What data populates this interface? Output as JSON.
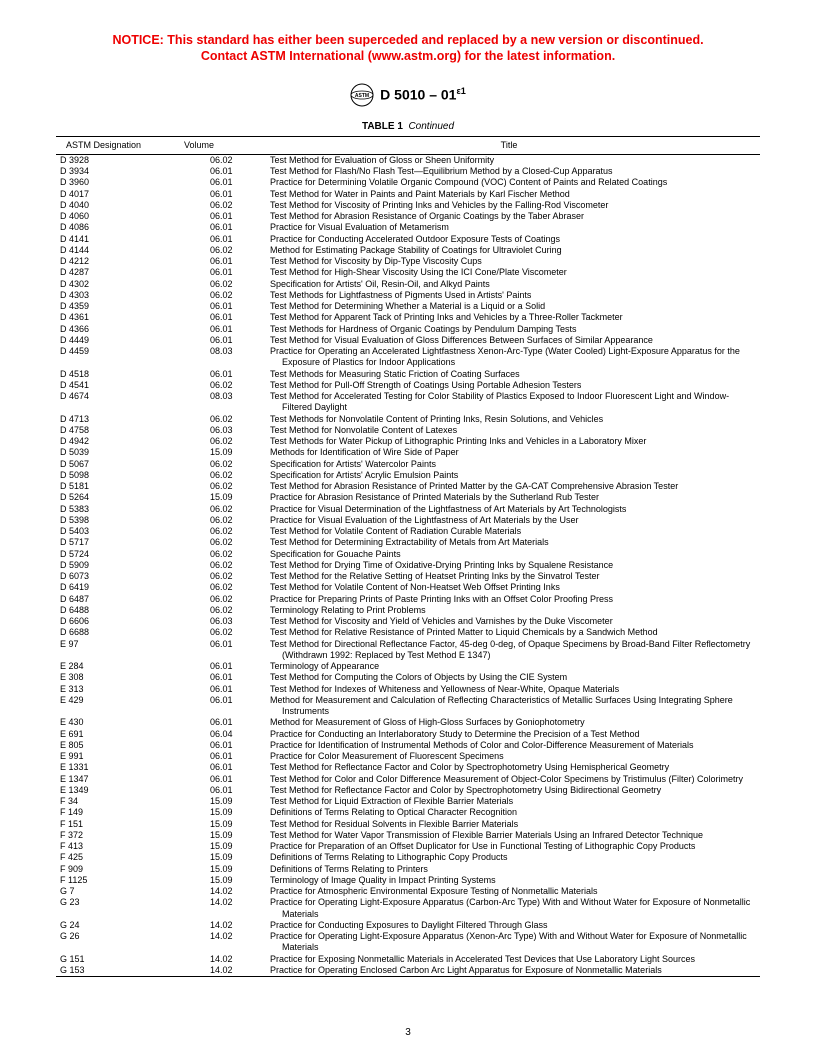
{
  "notice_line1": "NOTICE: This standard has either been superceded and replaced by a new version or discontinued.",
  "notice_line2": "Contact ASTM International (www.astm.org) for the latest information.",
  "doc_id_html": "D 5010 – 01<sup>ε1</sup>",
  "table_caption_bold": "TABLE 1",
  "table_caption_italic": "Continued",
  "headers": {
    "designation": "ASTM Designation",
    "volume": "Volume",
    "title": "Title"
  },
  "page_number": "3",
  "rows": [
    {
      "d": "D 3928",
      "v": "06.02",
      "t": "Test Method for Evaluation of Gloss or Sheen Uniformity"
    },
    {
      "d": "D 3934",
      "v": "06.01",
      "t": "Test Method for Flash/No Flash Test—Equilibrium Method by a Closed-Cup Apparatus"
    },
    {
      "d": "D 3960",
      "v": "06.01",
      "t": "Practice for Determining Volatile Organic Compound (VOC) Content of Paints and Related Coatings"
    },
    {
      "d": "D 4017",
      "v": "06.01",
      "t": "Test Method for Water in Paints and Paint Materials by Karl Fischer Method"
    },
    {
      "d": "D 4040",
      "v": "06.02",
      "t": "Test Method for Viscosity of Printing Inks and Vehicles by the Falling-Rod Viscometer"
    },
    {
      "d": "D 4060",
      "v": "06.01",
      "t": "Test Method for Abrasion Resistance of Organic Coatings by the Taber Abraser"
    },
    {
      "d": "D 4086",
      "v": "06.01",
      "t": "Practice for Visual Evaluation of Metamerism"
    },
    {
      "d": "D 4141",
      "v": "06.01",
      "t": "Practice for Conducting Accelerated Outdoor Exposure Tests of Coatings"
    },
    {
      "d": "D 4144",
      "v": "06.02",
      "t": "Method for Estimating Package Stability of Coatings for Ultraviolet Curing"
    },
    {
      "d": "D 4212",
      "v": "06.01",
      "t": "Test Method for Viscosity by Dip-Type Viscosity Cups"
    },
    {
      "d": "D 4287",
      "v": "06.01",
      "t": "Test Method for High-Shear Viscosity Using the ICI Cone/Plate Viscometer"
    },
    {
      "d": "D 4302",
      "v": "06.02",
      "t": "Specification for Artists' Oil, Resin-Oil, and Alkyd Paints"
    },
    {
      "d": "D 4303",
      "v": "06.02",
      "t": "Test Methods for Lightfastness of Pigments Used in Artists' Paints"
    },
    {
      "d": "D 4359",
      "v": "06.01",
      "t": "Test Method for Determining Whether a Material is a Liquid or a Solid"
    },
    {
      "d": "D 4361",
      "v": "06.01",
      "t": "Test Method for Apparent Tack of Printing Inks and Vehicles by a Three-Roller Tackmeter"
    },
    {
      "d": "D 4366",
      "v": "06.01",
      "t": "Test Methods for Hardness of Organic Coatings by Pendulum Damping Tests"
    },
    {
      "d": "D 4449",
      "v": "06.01",
      "t": "Test Method for Visual Evaluation of Gloss Differences Between Surfaces of Similar Appearance"
    },
    {
      "d": "D 4459",
      "v": "08.03",
      "t": "Practice for Operating an Accelerated Lightfastness Xenon-Arc-Type (Water Cooled) Light-Exposure Apparatus for the Exposure of Plastics for Indoor Applications"
    },
    {
      "d": "D 4518",
      "v": "06.01",
      "t": "Test Methods for Measuring Static Friction of Coating Surfaces"
    },
    {
      "d": "D 4541",
      "v": "06.02",
      "t": "Test Method for Pull-Off Strength of Coatings Using Portable Adhesion Testers"
    },
    {
      "d": "D 4674",
      "v": "08.03",
      "t": "Test Method for Accelerated Testing for Color Stability of Plastics Exposed to Indoor Fluorescent Light and Window-Filtered Daylight"
    },
    {
      "d": "D 4713",
      "v": "06.02",
      "t": "Test Methods for Nonvolatile Content of Printing Inks, Resin Solutions, and Vehicles"
    },
    {
      "d": "D 4758",
      "v": "06.03",
      "t": "Test Method for Nonvolatile Content of Latexes"
    },
    {
      "d": "D 4942",
      "v": "06.02",
      "t": "Test Methods for Water Pickup of Lithographic Printing Inks and Vehicles in a Laboratory Mixer"
    },
    {
      "d": "D 5039",
      "v": "15.09",
      "t": "Methods for Identification of Wire Side of Paper"
    },
    {
      "d": "D 5067",
      "v": "06.02",
      "t": "Specification for Artists' Watercolor Paints"
    },
    {
      "d": "D 5098",
      "v": "06.02",
      "t": "Specification for Artists' Acrylic Emulsion Paints"
    },
    {
      "d": "D 5181",
      "v": "06.02",
      "t": "Test Method for Abrasion Resistance of Printed Matter by the GA-CAT Comprehensive Abrasion Tester"
    },
    {
      "d": "D 5264",
      "v": "15.09",
      "t": "Practice for Abrasion Resistance of Printed Materials by the Sutherland Rub Tester"
    },
    {
      "d": "D 5383",
      "v": "06.02",
      "t": "Practice for Visual Determination of the Lightfastness of Art Materials by Art Technologists"
    },
    {
      "d": "D 5398",
      "v": "06.02",
      "t": "Practice for Visual Evaluation of the Lightfastness of Art Materials by the User"
    },
    {
      "d": "D 5403",
      "v": "06.02",
      "t": "Test Method for Volatile Content of Radiation Curable Materials"
    },
    {
      "d": "D 5717",
      "v": "06.02",
      "t": "Test Method for Determining Extractability of Metals from Art Materials"
    },
    {
      "d": "D 5724",
      "v": "06.02",
      "t": "Specification for Gouache Paints"
    },
    {
      "d": "D 5909",
      "v": "06.02",
      "t": "Test Method for Drying Time of Oxidative-Drying Printing Inks by Squalene Resistance"
    },
    {
      "d": "D 6073",
      "v": "06.02",
      "t": "Test Method for the Relative Setting of Heatset Printing Inks by the Sinvatrol Tester"
    },
    {
      "d": "D 6419",
      "v": "06.02",
      "t": "Test Method for Volatile Content of Non-Heatset Web Offset Printing Inks"
    },
    {
      "d": "D 6487",
      "v": "06.02",
      "t": "Practice for Preparing Prints of Paste Printing Inks with an Offset Color Proofing Press"
    },
    {
      "d": "D 6488",
      "v": "06.02",
      "t": "Terminology Relating to Print Problems"
    },
    {
      "d": "D 6606",
      "v": "06.03",
      "t": "Test Method for Viscosity and Yield of Vehicles and Varnishes by the Duke Viscometer"
    },
    {
      "d": "D 6688",
      "v": "06.02",
      "t": "Test Method for Relative Resistance of Printed Matter to Liquid Chemicals by a Sandwich Method"
    },
    {
      "d": "E 97",
      "v": "06.01",
      "t": "Test Method for Directional Reflectance Factor, 45-deg 0-deg, of Opaque Specimens by Broad-Band Filter Reflectometry (Withdrawn 1992: Replaced by Test Method E 1347)"
    },
    {
      "d": "E 284",
      "v": "06.01",
      "t": "Terminology of Appearance"
    },
    {
      "d": "E 308",
      "v": "06.01",
      "t": "Test Method for Computing the Colors of Objects by Using the CIE System"
    },
    {
      "d": "E 313",
      "v": "06.01",
      "t": "Test Method for Indexes of Whiteness and Yellowness of Near-White, Opaque Materials"
    },
    {
      "d": "E 429",
      "v": "06.01",
      "t": "Method for Measurement and Calculation of Reflecting Characteristics of Metallic Surfaces Using Integrating Sphere Instruments"
    },
    {
      "d": "E 430",
      "v": "06.01",
      "t": "Method for Measurement of Gloss of High-Gloss Surfaces by Goniophotometry"
    },
    {
      "d": "E 691",
      "v": "06.04",
      "t": "Practice for Conducting an Interlaboratory Study to Determine the Precision of a Test Method"
    },
    {
      "d": "E 805",
      "v": "06.01",
      "t": "Practice for Identification of Instrumental Methods of Color and Color-Difference Measurement of Materials"
    },
    {
      "d": "E 991",
      "v": "06.01",
      "t": "Practice for Color Measurement of Fluorescent Specimens"
    },
    {
      "d": "E 1331",
      "v": "06.01",
      "t": "Test Method for Reflectance Factor and Color by Spectrophotometry Using Hemispherical Geometry"
    },
    {
      "d": "E 1347",
      "v": "06.01",
      "t": "Test Method for Color and Color Difference Measurement of Object-Color Specimens by Tristimulus (Filter) Colorimetry"
    },
    {
      "d": "E 1349",
      "v": "06.01",
      "t": "Test Method for Reflectance Factor and Color by Spectrophotometry Using Bidirectional Geometry"
    },
    {
      "d": "F 34",
      "v": "15.09",
      "t": "Test Method for Liquid Extraction of Flexible Barrier Materials"
    },
    {
      "d": "F 149",
      "v": "15.09",
      "t": "Definitions of Terms Relating to Optical Character Recognition"
    },
    {
      "d": "F 151",
      "v": "15.09",
      "t": "Test Method for Residual Solvents in Flexible Barrier Materials"
    },
    {
      "d": "F 372",
      "v": "15.09",
      "t": "Test Method for Water Vapor Transmission of Flexible Barrier Materials Using an Infrared Detector Technique"
    },
    {
      "d": "F 413",
      "v": "15.09",
      "t": "Practice for Preparation of an Offset Duplicator for Use in Functional Testing of Lithographic Copy Products"
    },
    {
      "d": "F 425",
      "v": "15.09",
      "t": "Definitions of Terms Relating to Lithographic Copy Products"
    },
    {
      "d": "F 909",
      "v": "15.09",
      "t": "Definitions of Terms Relating to Printers"
    },
    {
      "d": "F 1125",
      "v": "15.09",
      "t": "Terminology of Image Quality in Impact Printing Systems"
    },
    {
      "d": "G 7",
      "v": "14.02",
      "t": "Practice for Atmospheric Environmental Exposure Testing of Nonmetallic Materials"
    },
    {
      "d": "G 23",
      "v": "14.02",
      "t": "Practice for Operating Light-Exposure Apparatus (Carbon-Arc Type) With and Without Water for Exposure of Nonmetallic Materials"
    },
    {
      "d": "G 24",
      "v": "14.02",
      "t": "Practice for Conducting Exposures to Daylight Filtered Through Glass"
    },
    {
      "d": "G 26",
      "v": "14.02",
      "t": "Practice for Operating Light-Exposure Apparatus (Xenon-Arc Type) With and Without Water for Exposure of Nonmetallic Materials"
    },
    {
      "d": "G 151",
      "v": "14.02",
      "t": "Practice for Exposing Nonmetallic Materials in Accelerated Test Devices that Use Laboratory Light Sources"
    },
    {
      "d": "G 153",
      "v": "14.02",
      "t": "Practice for Operating Enclosed Carbon Arc Light Apparatus for Exposure of Nonmetallic Materials"
    }
  ]
}
